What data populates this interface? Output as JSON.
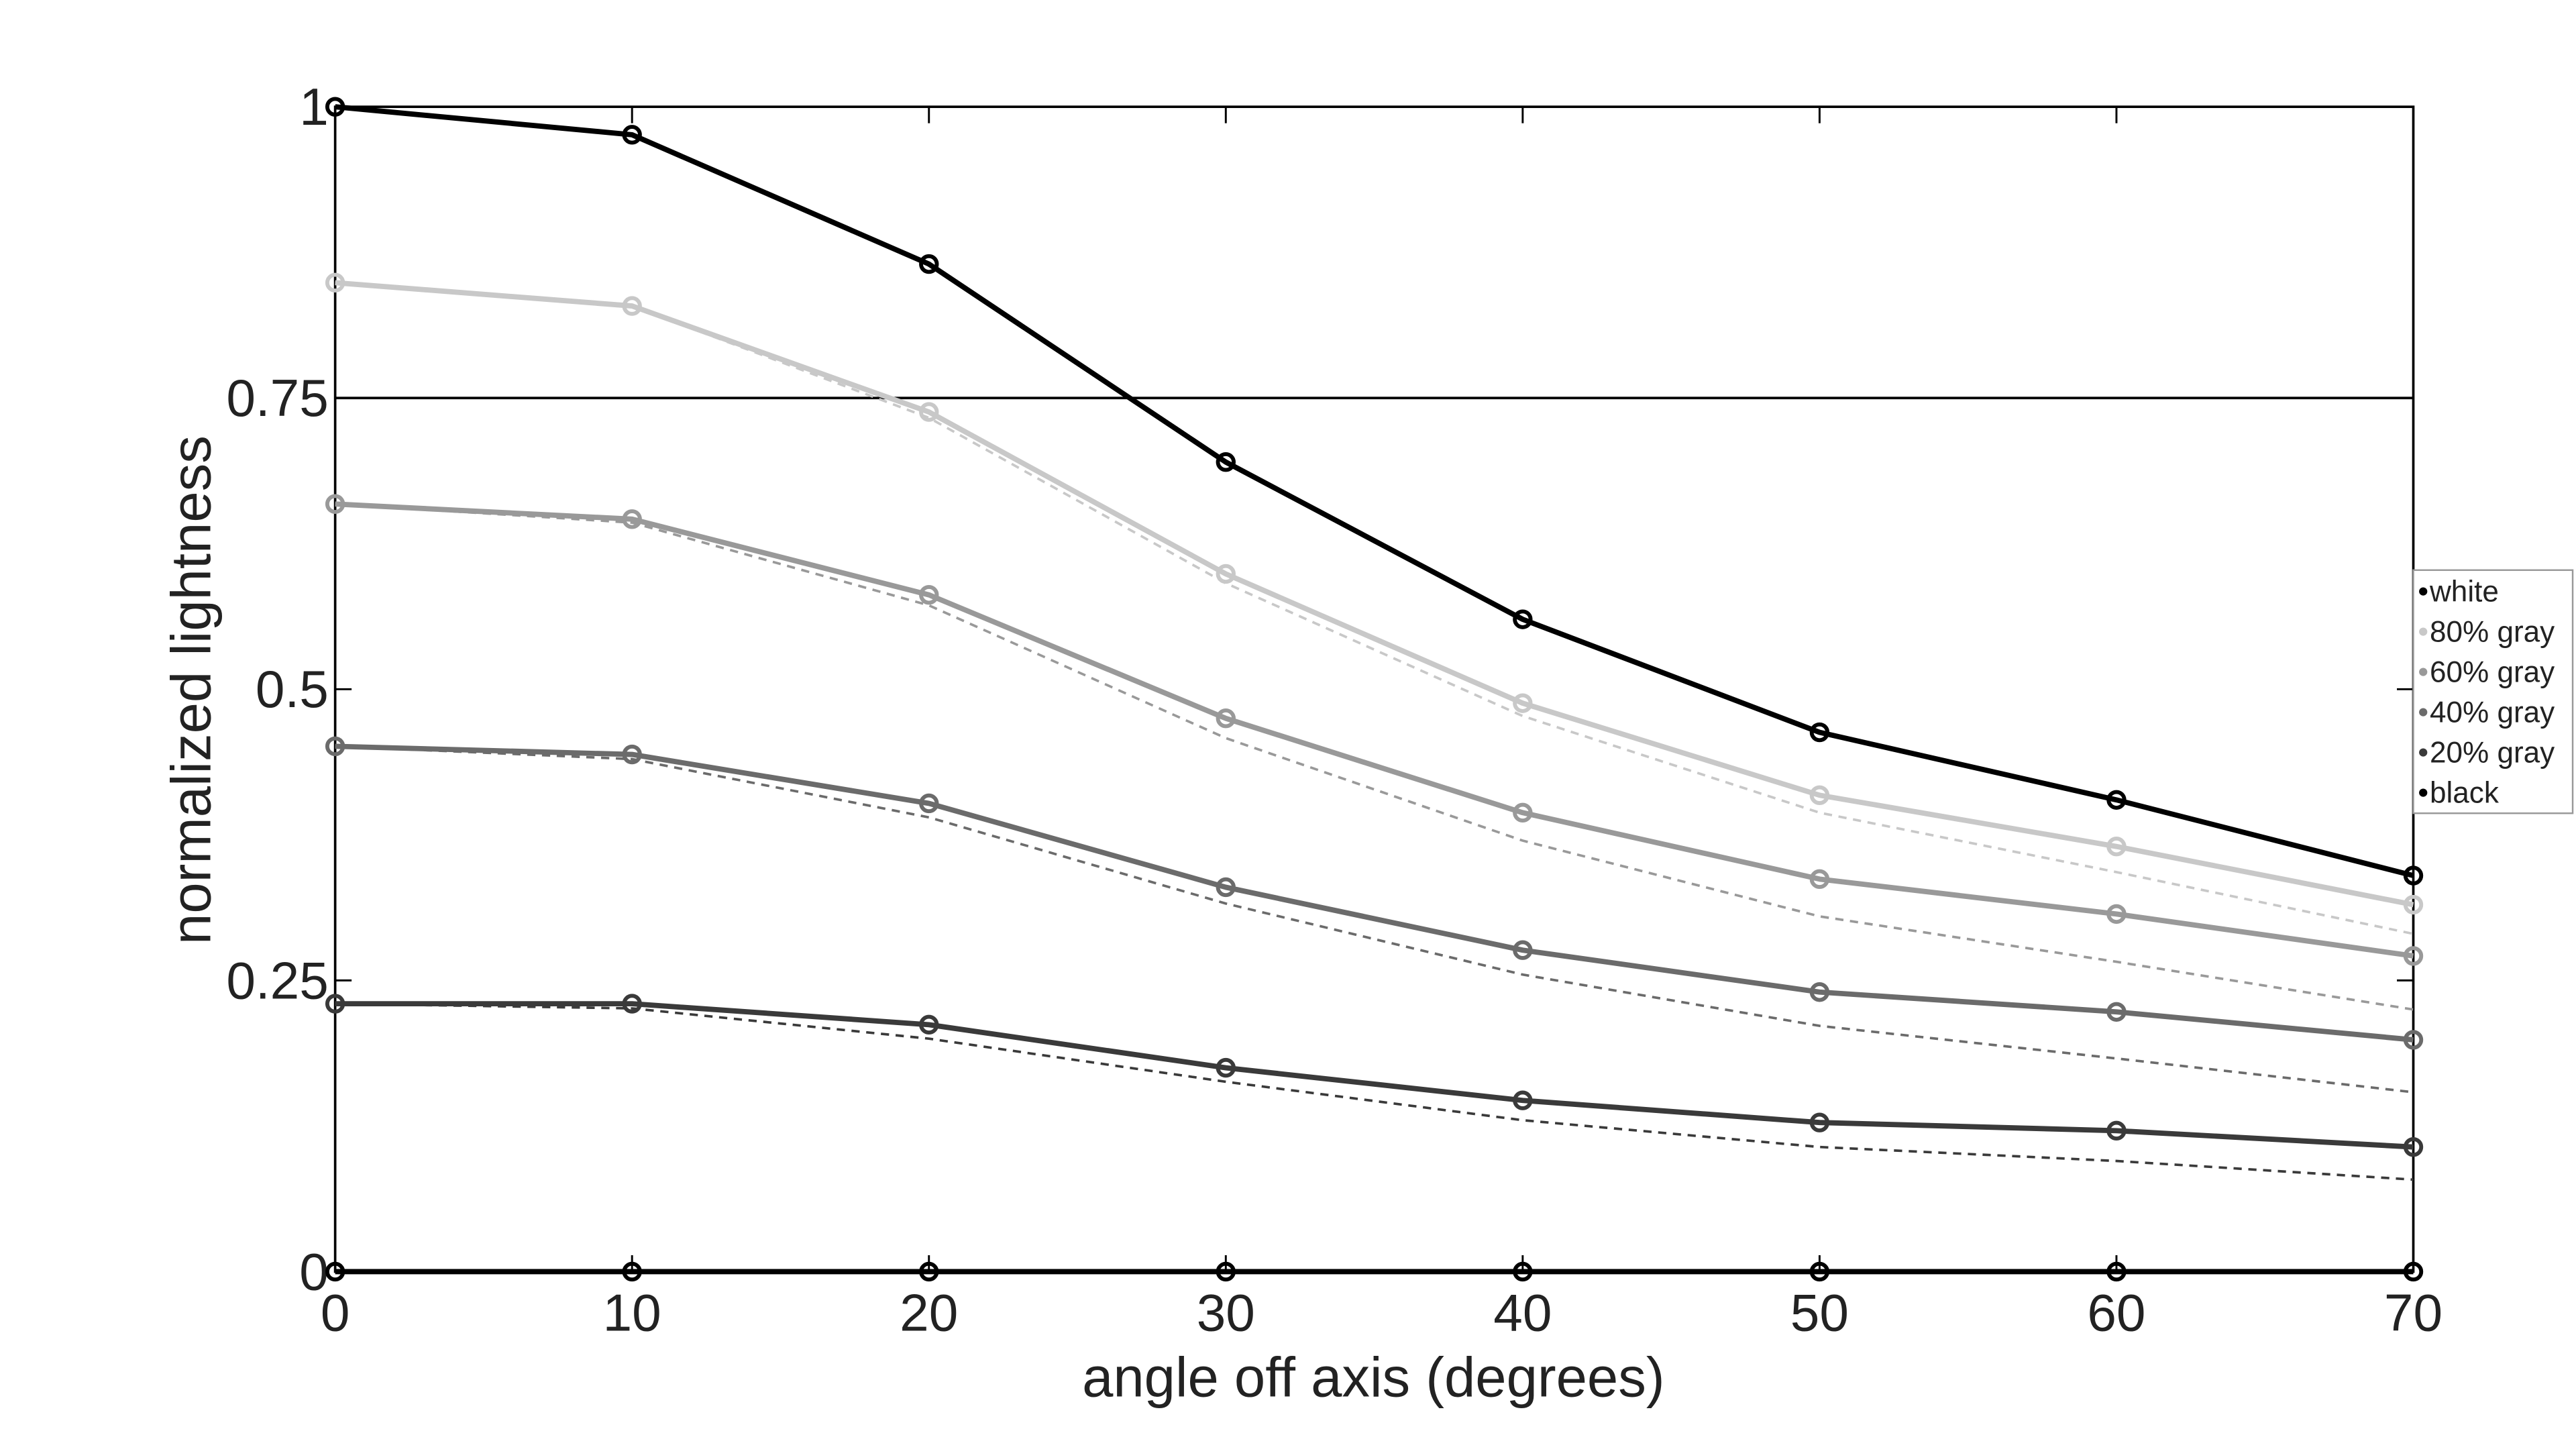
{
  "chart_data": {
    "type": "line",
    "xlabel": "angle off axis (degrees)",
    "ylabel": "normalized lightness",
    "x": [
      0,
      10,
      20,
      30,
      40,
      50,
      60,
      70
    ],
    "xlim": [
      0,
      70
    ],
    "xticks": [
      0,
      10,
      20,
      30,
      40,
      50,
      60,
      70
    ],
    "ylim": [
      0,
      1
    ],
    "yticks": [
      0,
      0.25,
      0.5,
      0.75,
      1
    ],
    "hlines": [
      0.75
    ],
    "legend": "right",
    "series": [
      {
        "name": "white",
        "color": "#000000",
        "values": [
          1,
          0.976,
          0.865,
          0.695,
          0.56,
          0.463,
          0.405,
          0.34
        ]
      },
      {
        "name": "80% gray",
        "color": "#c8c8c8",
        "values": [
          0.849,
          0.829,
          0.738,
          0.599,
          0.488,
          0.409,
          0.365,
          0.315
        ]
      },
      {
        "name": "60% gray",
        "color": "#999999",
        "values": [
          0.659,
          0.646,
          0.581,
          0.475,
          0.394,
          0.337,
          0.307,
          0.271
        ]
      },
      {
        "name": "40% gray",
        "color": "#6b6b6b",
        "values": [
          0.451,
          0.444,
          0.402,
          0.33,
          0.276,
          0.24,
          0.223,
          0.199
        ]
      },
      {
        "name": "20% gray",
        "color": "#3a3a3a",
        "values": [
          0.23,
          0.23,
          0.212,
          0.175,
          0.147,
          0.128,
          0.121,
          0.107
        ]
      },
      {
        "name": "black",
        "color": "#000000",
        "values": [
          0,
          0,
          0,
          0,
          0,
          0,
          0,
          0
        ]
      }
    ],
    "dashed_series": [
      {
        "color": "#c8c8c8",
        "values": [
          0.849,
          0.829,
          0.733,
          0.591,
          0.477,
          0.394,
          0.343,
          0.29
        ]
      },
      {
        "color": "#999999",
        "values": [
          0.659,
          0.643,
          0.572,
          0.458,
          0.37,
          0.305,
          0.266,
          0.225
        ]
      },
      {
        "color": "#6b6b6b",
        "values": [
          0.451,
          0.44,
          0.39,
          0.316,
          0.255,
          0.211,
          0.183,
          0.154
        ]
      },
      {
        "color": "#3a3a3a",
        "values": [
          0.23,
          0.226,
          0.2,
          0.163,
          0.13,
          0.107,
          0.095,
          0.079
        ]
      }
    ]
  }
}
